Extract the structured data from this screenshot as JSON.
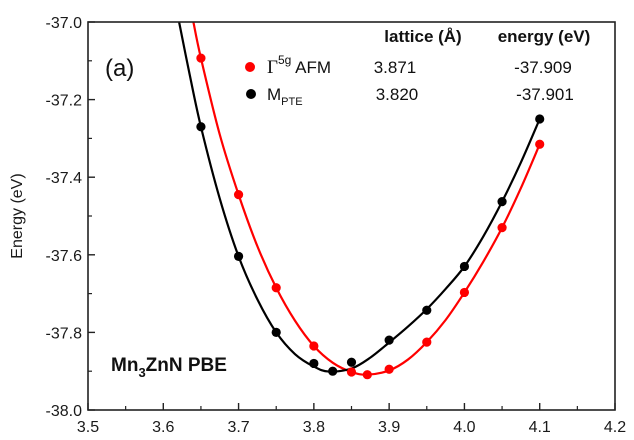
{
  "chart_data": {
    "type": "scatter",
    "title": "",
    "panel_label": "(a)",
    "xlabel": "",
    "ylabel": "Energy (eV)",
    "xlim": [
      3.5,
      4.2
    ],
    "ylim": [
      -38.0,
      -37.0
    ],
    "x_ticks": [
      "3.5",
      "3.6",
      "3.7",
      "3.8",
      "3.9",
      "4.0",
      "4.1",
      "4.2"
    ],
    "x_tick_values": [
      3.5,
      3.6,
      3.7,
      3.8,
      3.9,
      4.0,
      4.1,
      4.2
    ],
    "x_minor_tick_values": [
      3.55,
      3.65,
      3.75,
      3.85,
      3.95,
      4.05,
      4.15
    ],
    "y_ticks": [
      "-37.0",
      "-37.2",
      "-37.4",
      "-37.6",
      "-37.8",
      "-38.0"
    ],
    "y_tick_values": [
      -37.0,
      -37.2,
      -37.4,
      -37.6,
      -37.8,
      -38.0
    ],
    "y_minor_tick_values": [
      -37.1,
      -37.3,
      -37.5,
      -37.7,
      -37.9
    ],
    "grid": false,
    "legend": {
      "placement": "top-right",
      "header": {
        "lattice": "lattice (Å)",
        "energy": "energy (eV)"
      },
      "entries": [
        {
          "symbol": "Γ",
          "sup": "5g",
          "rest": " AFM",
          "lattice": "3.871",
          "energy": "-37.909",
          "color": "#ff0000"
        },
        {
          "symbol": "M",
          "sub": "PTE",
          "rest": "",
          "lattice": "3.820",
          "energy": "-37.901",
          "color": "#000000"
        }
      ]
    },
    "annotation": {
      "pre": "Mn",
      "sub": "3",
      "post": "ZnN  PBE"
    },
    "series": [
      {
        "name": "Γ5g AFM",
        "color": "#ff0000",
        "points": [
          [
            3.65,
            -37.093
          ],
          [
            3.7,
            -37.445
          ],
          [
            3.75,
            -37.685
          ],
          [
            3.8,
            -37.835
          ],
          [
            3.85,
            -37.902
          ],
          [
            3.871,
            -37.909
          ],
          [
            3.9,
            -37.895
          ],
          [
            3.95,
            -37.825
          ],
          [
            4.0,
            -37.697
          ],
          [
            4.05,
            -37.53
          ],
          [
            4.1,
            -37.315
          ]
        ],
        "fit": [
          [
            3.64,
            -37.0
          ],
          [
            3.65,
            -37.093
          ],
          [
            3.675,
            -37.29
          ],
          [
            3.7,
            -37.445
          ],
          [
            3.725,
            -37.578
          ],
          [
            3.75,
            -37.685
          ],
          [
            3.775,
            -37.77
          ],
          [
            3.8,
            -37.835
          ],
          [
            3.825,
            -37.878
          ],
          [
            3.85,
            -37.902
          ],
          [
            3.871,
            -37.909
          ],
          [
            3.9,
            -37.898
          ],
          [
            3.925,
            -37.87
          ],
          [
            3.95,
            -37.825
          ],
          [
            3.975,
            -37.768
          ],
          [
            4.0,
            -37.697
          ],
          [
            4.025,
            -37.618
          ],
          [
            4.05,
            -37.53
          ],
          [
            4.075,
            -37.428
          ],
          [
            4.1,
            -37.315
          ]
        ]
      },
      {
        "name": "MPTE",
        "color": "#000000",
        "points": [
          [
            3.65,
            -37.27
          ],
          [
            3.7,
            -37.604
          ],
          [
            3.75,
            -37.8
          ],
          [
            3.8,
            -37.88
          ],
          [
            3.825,
            -37.9
          ],
          [
            3.85,
            -37.877
          ],
          [
            3.9,
            -37.82
          ],
          [
            3.95,
            -37.743
          ],
          [
            4.0,
            -37.63
          ],
          [
            4.05,
            -37.463
          ],
          [
            4.1,
            -37.25
          ]
        ],
        "fit": [
          [
            3.621,
            -37.0
          ],
          [
            3.635,
            -37.135
          ],
          [
            3.65,
            -37.27
          ],
          [
            3.675,
            -37.455
          ],
          [
            3.7,
            -37.604
          ],
          [
            3.725,
            -37.715
          ],
          [
            3.75,
            -37.8
          ],
          [
            3.775,
            -37.856
          ],
          [
            3.8,
            -37.888
          ],
          [
            3.82,
            -37.901
          ],
          [
            3.85,
            -37.893
          ],
          [
            3.875,
            -37.865
          ],
          [
            3.9,
            -37.826
          ],
          [
            3.925,
            -37.785
          ],
          [
            3.95,
            -37.74
          ],
          [
            3.975,
            -37.688
          ],
          [
            4.0,
            -37.63
          ],
          [
            4.025,
            -37.553
          ],
          [
            4.05,
            -37.463
          ],
          [
            4.075,
            -37.362
          ],
          [
            4.1,
            -37.25
          ]
        ]
      }
    ]
  }
}
